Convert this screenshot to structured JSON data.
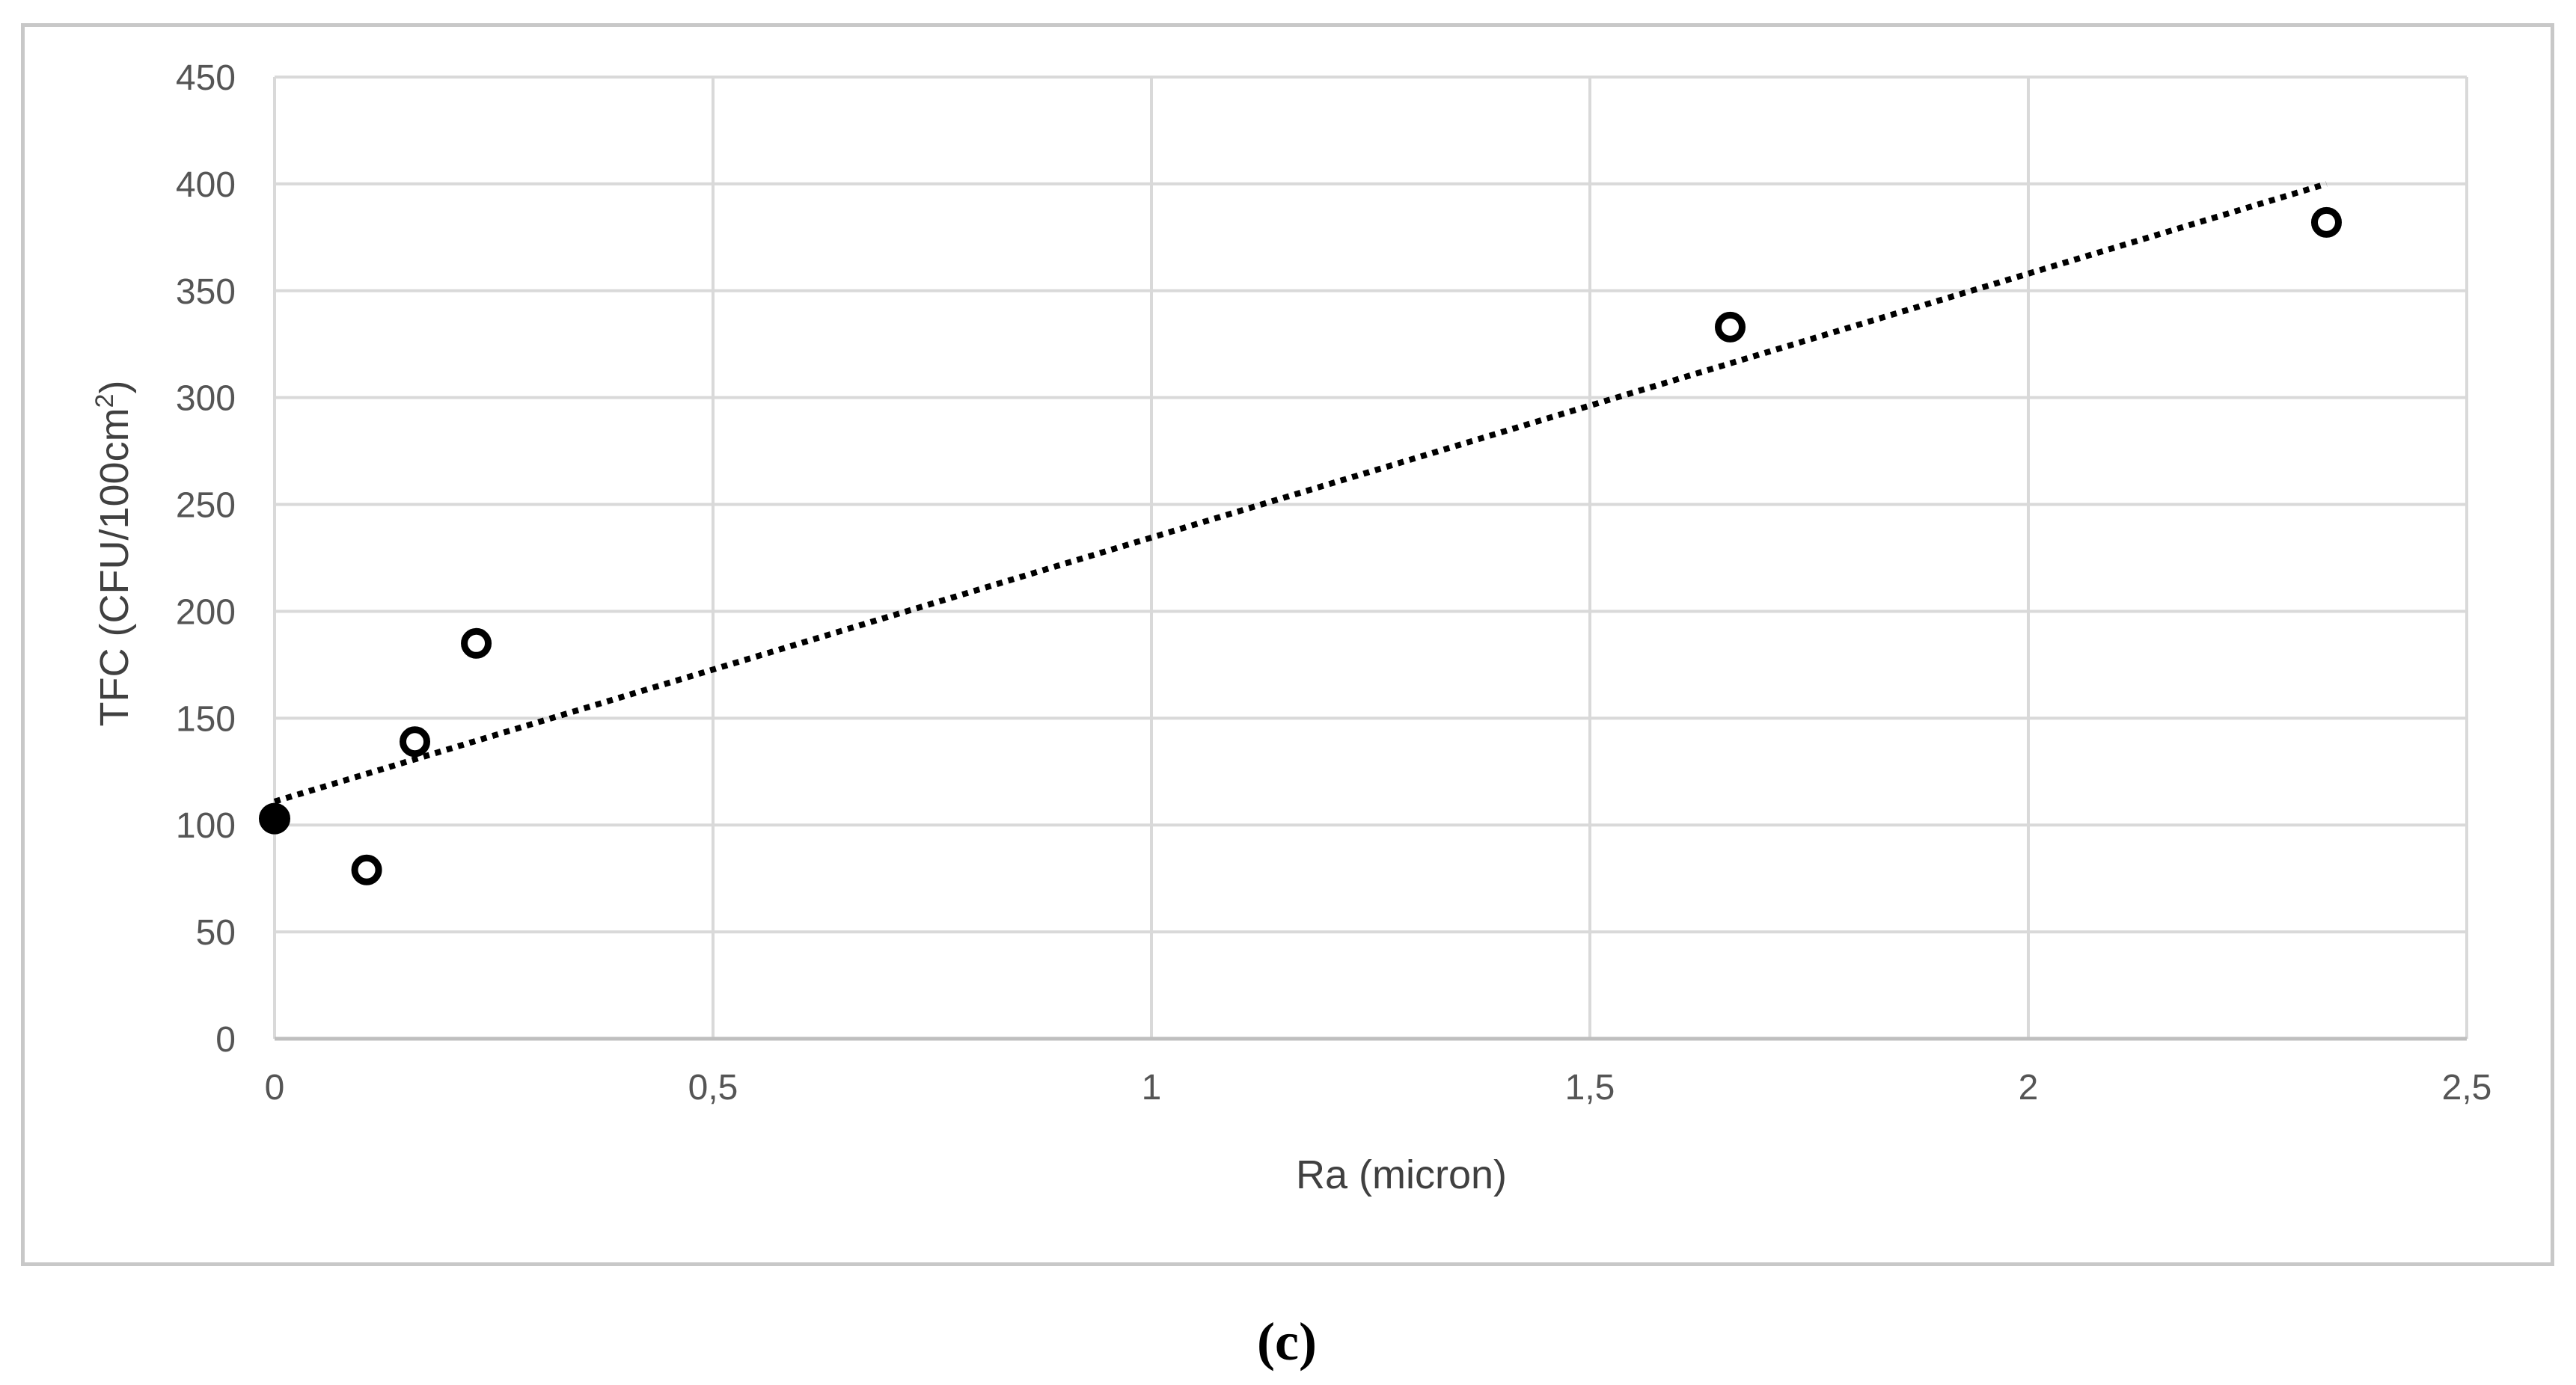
{
  "chart_data": {
    "type": "scatter",
    "xlabel": "Ra (micron)",
    "ylabel_base": "TFC (CFU/100cm",
    "ylabel_sup": "2",
    "ylabel_close": ")",
    "xlim": [
      0,
      2.5
    ],
    "ylim": [
      0,
      450
    ],
    "x_ticks": [
      0,
      0.5,
      1,
      1.5,
      2,
      2.5
    ],
    "x_tick_labels": [
      "0",
      "0,5",
      "1",
      "1,5",
      "2",
      "2,5"
    ],
    "y_ticks": [
      0,
      50,
      100,
      150,
      200,
      250,
      300,
      350,
      400,
      450
    ],
    "y_tick_labels": [
      "0",
      "50",
      "100",
      "150",
      "200",
      "250",
      "300",
      "350",
      "400",
      "450"
    ],
    "grid": true,
    "series": [
      {
        "marker": "open-circle",
        "points": [
          {
            "x": 0.105,
            "y": 79
          },
          {
            "x": 0.16,
            "y": 139
          },
          {
            "x": 0.23,
            "y": 185
          },
          {
            "x": 1.66,
            "y": 333
          },
          {
            "x": 2.34,
            "y": 382
          }
        ]
      },
      {
        "marker": "filled-circle",
        "points": [
          {
            "x": 0.0,
            "y": 103
          }
        ]
      }
    ],
    "trendline": {
      "style": "dotted",
      "from": {
        "x": 0.0,
        "y": 111
      },
      "to": {
        "x": 2.34,
        "y": 400
      }
    },
    "caption": "(c)",
    "colors": {
      "grid": "#d9d9d9",
      "frame": "#c8c8c8",
      "marker": "#000000",
      "text": "#555555"
    }
  }
}
